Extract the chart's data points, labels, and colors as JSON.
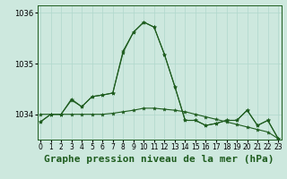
{
  "title": "Graphe pression niveau de la mer (hPa)",
  "background_color": "#cde8de",
  "grid_color": "#b0d8cc",
  "line_color": "#1e5c1e",
  "x_labels": [
    "0",
    "1",
    "2",
    "3",
    "4",
    "5",
    "6",
    "7",
    "8",
    "9",
    "10",
    "11",
    "12",
    "13",
    "14",
    "15",
    "16",
    "17",
    "18",
    "19",
    "20",
    "21",
    "22",
    "23"
  ],
  "series1": [
    1033.85,
    1034.0,
    1034.0,
    1034.3,
    1034.15,
    1034.35,
    1034.38,
    1034.42,
    1035.25,
    1035.62,
    1035.82,
    1035.72,
    1035.18,
    1034.55,
    1033.88,
    1033.88,
    1033.78,
    1033.82,
    1033.88,
    1033.88,
    1034.08,
    1033.78,
    1033.88,
    1033.52
  ],
  "series2": [
    1034.0,
    1034.0,
    1034.0,
    1034.0,
    1034.0,
    1034.0,
    1034.0,
    1034.02,
    1034.05,
    1034.08,
    1034.12,
    1034.12,
    1034.1,
    1034.08,
    1034.05,
    1034.0,
    1033.95,
    1033.9,
    1033.85,
    1033.8,
    1033.75,
    1033.7,
    1033.65,
    1033.52
  ],
  "series3": [
    1033.85,
    1034.0,
    1034.0,
    1034.28,
    1034.15,
    1034.35,
    1034.38,
    1034.42,
    1035.22,
    1035.62,
    1035.82,
    1035.72,
    1035.18,
    1034.55,
    1033.88,
    1033.88,
    1033.78,
    1033.82,
    1033.88,
    1033.88,
    1034.08,
    1033.78,
    1033.88,
    1033.52
  ],
  "ylim": [
    1033.5,
    1036.15
  ],
  "yticks": [
    1034,
    1035,
    1036
  ],
  "ylabel_fontsize": 6,
  "xlabel_fontsize": 8,
  "tick_fontsize": 6
}
